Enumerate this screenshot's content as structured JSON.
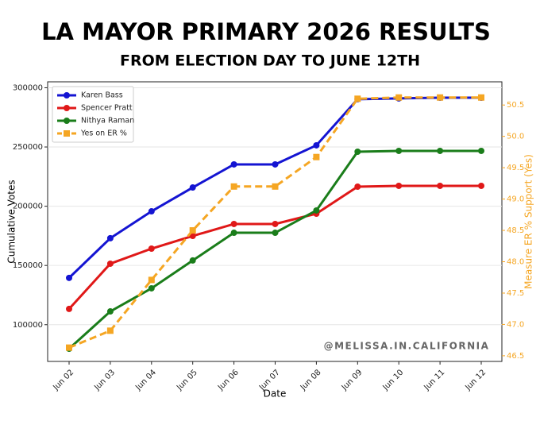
{
  "chart_data": {
    "type": "line",
    "title": "LA MAYOR PRIMARY 2026 RESULTS",
    "subtitle": "FROM ELECTION DAY TO JUNE 12TH",
    "x_label": "Date",
    "y_label": "Cumulative Votes",
    "y2_label": "Measure ER % Support (Yes)",
    "annotation": "@MELISSA.IN.CALIFORNIA",
    "categories": [
      "Jun 02",
      "Jun 03",
      "Jun 04",
      "Jun 05",
      "Jun 06",
      "Jun 07",
      "Jun 08",
      "Jun 09",
      "Jun 10",
      "Jun 11",
      "Jun 12"
    ],
    "series": [
      {
        "name": "Karen Bass",
        "color": "#1414d2",
        "values": [
          139500,
          173000,
          195700,
          215800,
          235300,
          235300,
          251400,
          290300,
          291000,
          291600,
          291600
        ]
      },
      {
        "name": "Spencer Pratt",
        "color": "#e01818",
        "values": [
          113300,
          151500,
          164200,
          174900,
          185000,
          185000,
          193700,
          216500,
          217200,
          217200,
          217200
        ]
      },
      {
        "name": "Nithya Raman",
        "color": "#1a7d1a",
        "values": [
          79700,
          111200,
          130700,
          154200,
          177600,
          177600,
          196400,
          246000,
          246700,
          246700,
          246700
        ]
      },
      {
        "name": "Yes on ER %",
        "color": "#f5a623",
        "axis": "y2",
        "linestyle": "dashed",
        "marker": "square",
        "values": [
          46.63,
          46.9,
          47.71,
          48.5,
          49.2,
          49.2,
          49.67,
          50.6,
          50.62,
          50.62,
          50.62
        ]
      }
    ],
    "ylim": [
      69000,
      305000
    ],
    "yticks": [
      100000,
      150000,
      200000,
      250000,
      300000
    ],
    "y2lim": [
      46.41,
      50.87
    ],
    "y2ticks": [
      46.5,
      {
        "value": 47,
        "label": "47.0"
      },
      47.5,
      {
        "value": 48,
        "label": "48.0"
      },
      48.5,
      {
        "value": 49,
        "label": "49.0"
      },
      49.5,
      {
        "value": 50,
        "label": "50.0"
      },
      50.5
    ],
    "y2_color": "#f5a623",
    "grid": true,
    "legend": "upper left"
  }
}
